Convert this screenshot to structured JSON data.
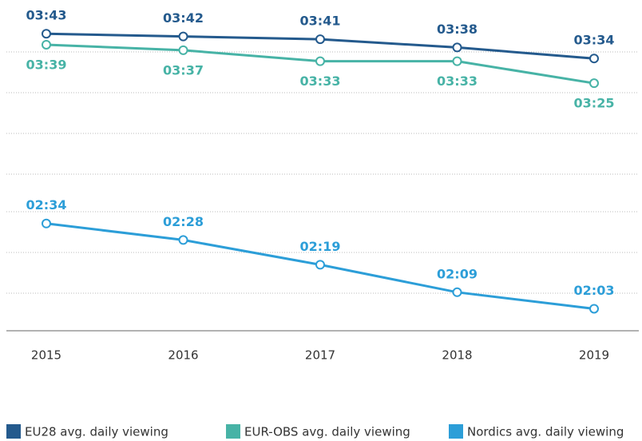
{
  "chart_data": {
    "type": "line",
    "categories": [
      "2015",
      "2016",
      "2017",
      "2018",
      "2019"
    ],
    "series": [
      {
        "name": "EU28 avg. daily viewing",
        "color": "#245a8d",
        "values": [
          223,
          222,
          221,
          218,
          214
        ],
        "value_labels": [
          "03:43",
          "03:42",
          "03:41",
          "03:38",
          "03:34"
        ]
      },
      {
        "name": "EUR-OBS avg. daily viewing",
        "color": "#47b3a6",
        "values": [
          219,
          217,
          213,
          213,
          205
        ],
        "value_labels": [
          "03:39",
          "03:37",
          "03:33",
          "03:33",
          "03:25"
        ]
      },
      {
        "name": "Nordics avg. daily viewing",
        "color": "#2c9ed8",
        "values": [
          154,
          148,
          139,
          129,
          123
        ],
        "value_labels": [
          "02:34",
          "02:28",
          "02:19",
          "02:09",
          "02:03"
        ]
      }
    ],
    "ylim": [
      115,
      228
    ]
  }
}
